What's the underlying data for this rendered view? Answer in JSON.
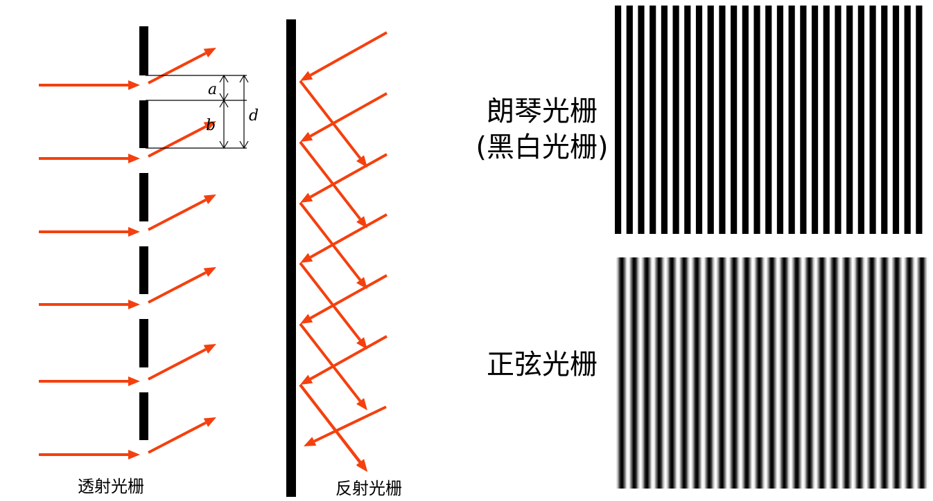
{
  "labels": {
    "transmission_grating": "透射光栅",
    "reflection_grating": "反射光栅",
    "ronchi_grating_line1": "朗琴光栅",
    "ronchi_grating_line2": "(黑白光栅)",
    "sinusoidal_grating": "正弦光栅",
    "dim_a": "a",
    "dim_b": "b",
    "dim_d": "d"
  },
  "colors": {
    "ray": "#f4400e",
    "grating": "#000000",
    "background": "#ffffff"
  }
}
